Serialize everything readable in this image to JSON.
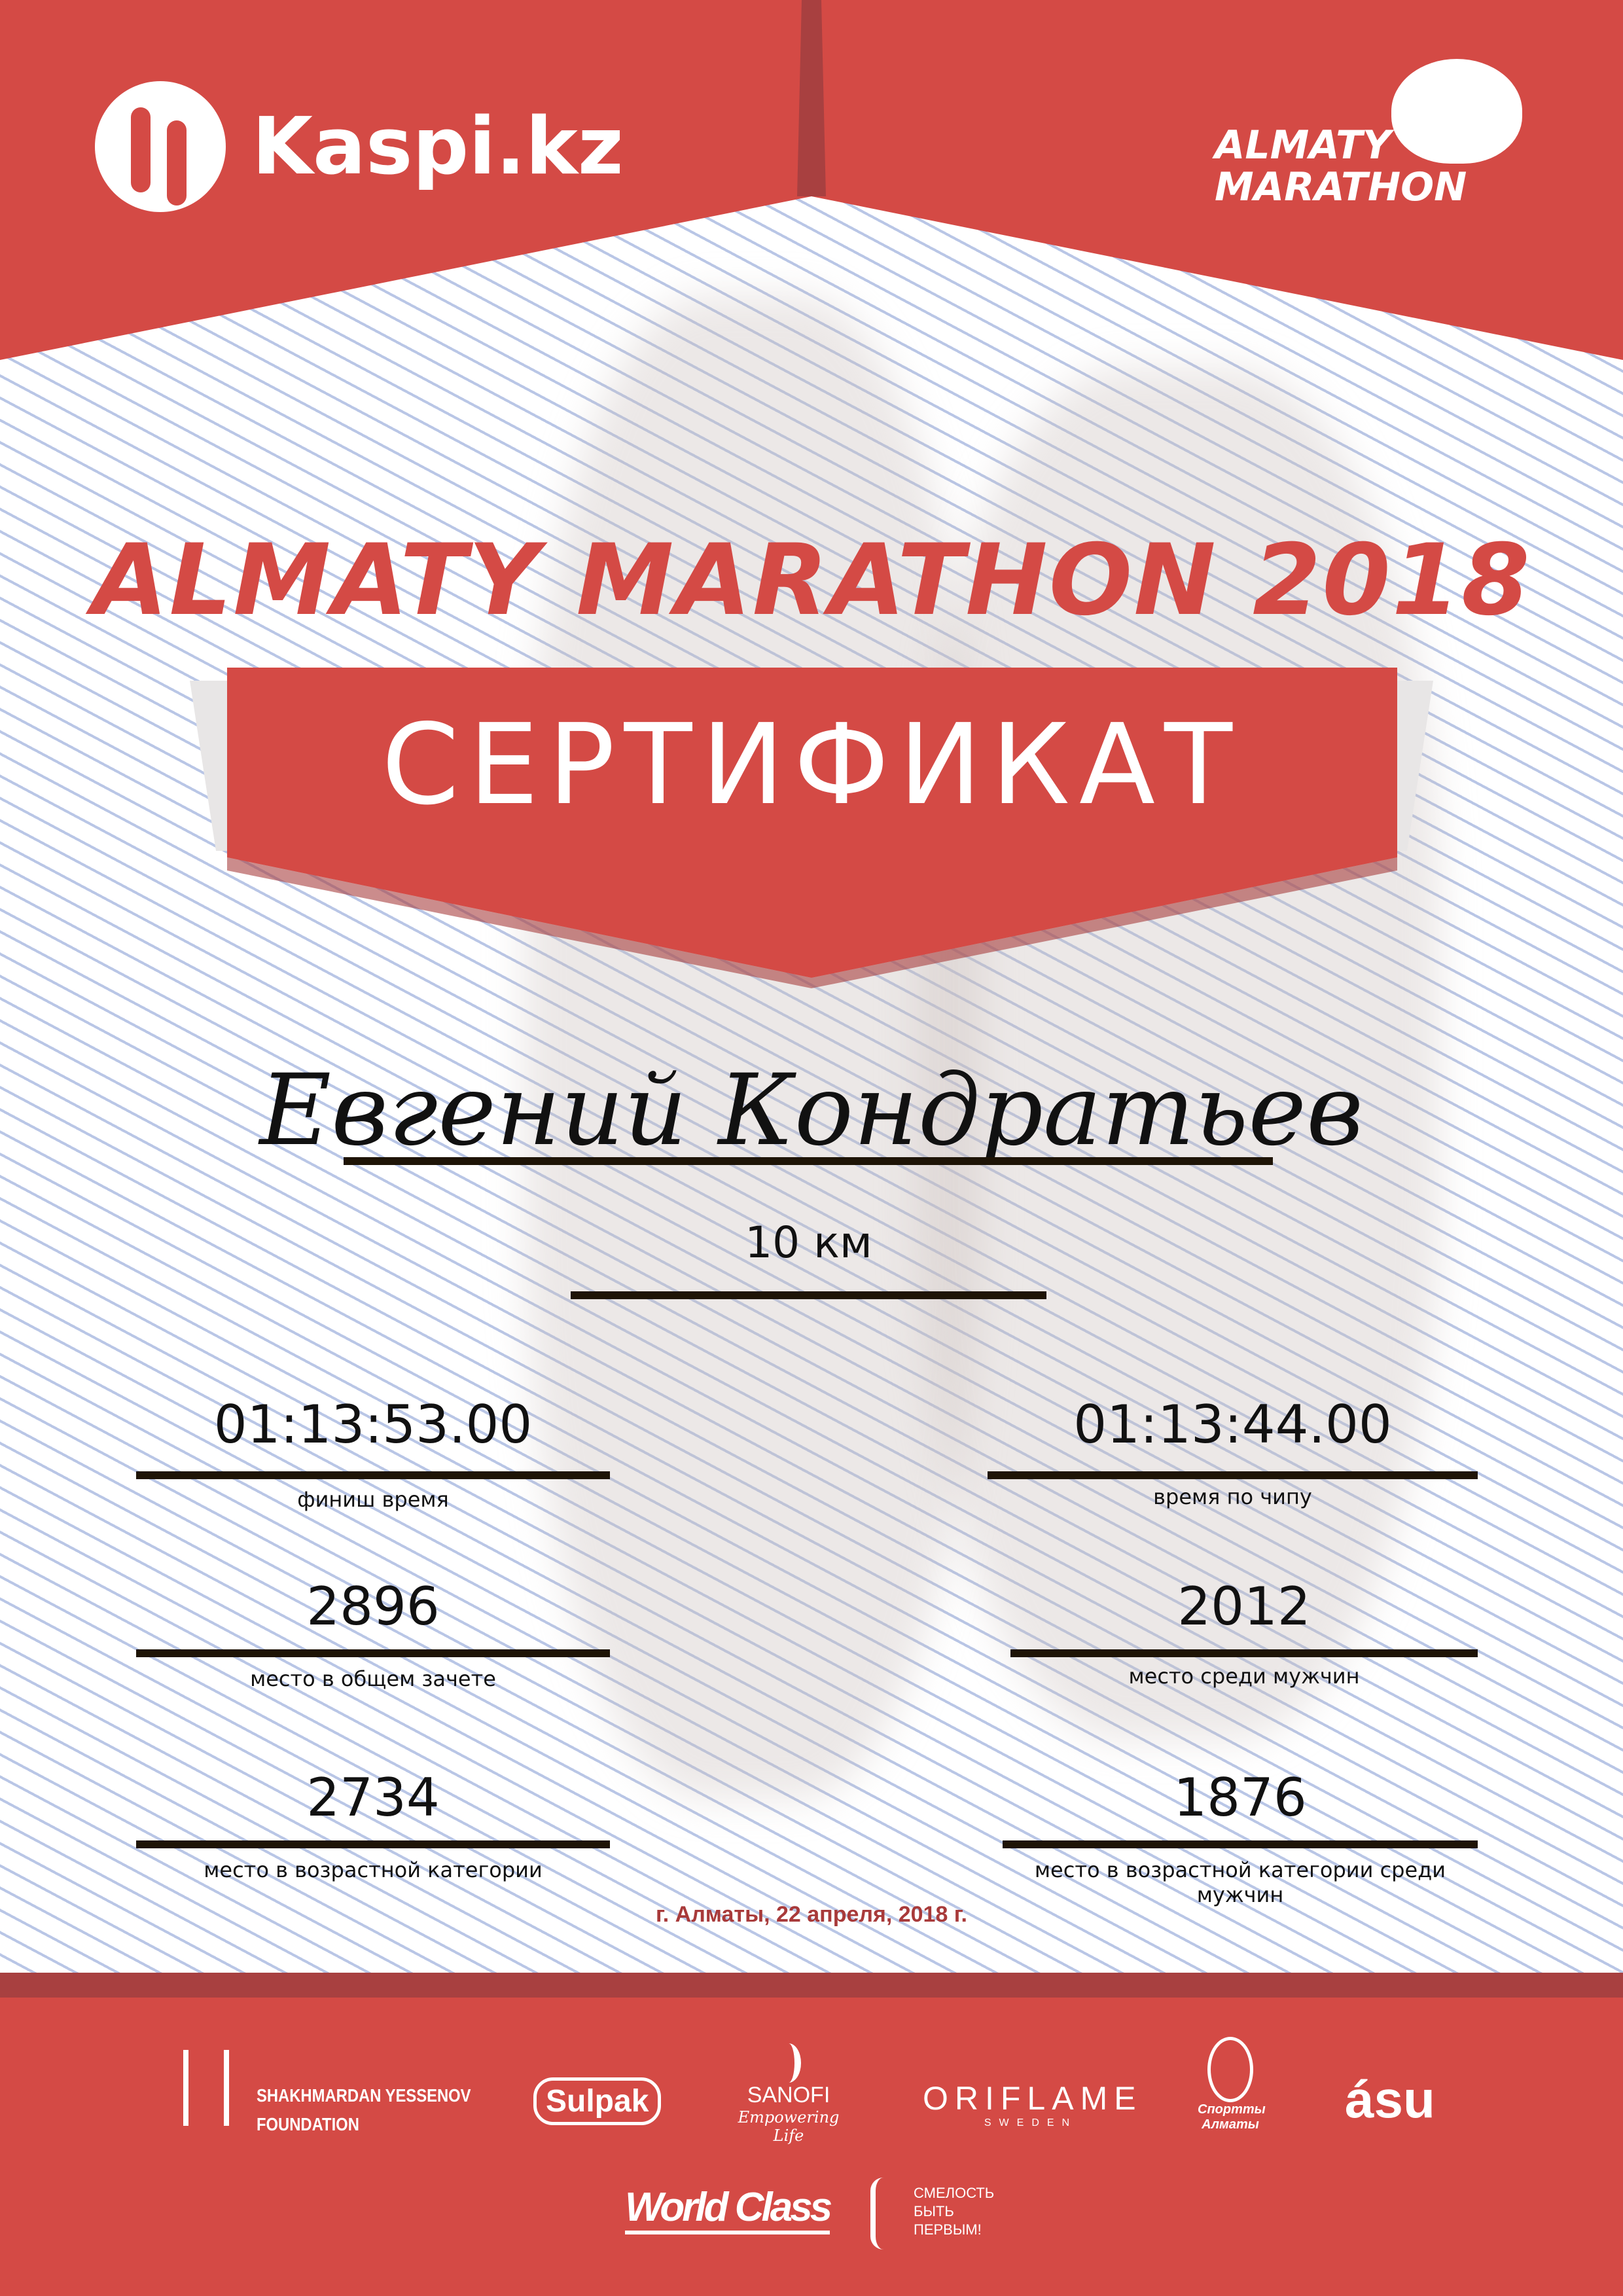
{
  "colors": {
    "brand_red": "#d44a45",
    "dark_red": "#a84040",
    "text": "#111111",
    "date": "#a83a3a"
  },
  "header": {
    "kaspi_logo": "Kaspi.kz",
    "almaty_logo_line1": "ALMATY",
    "almaty_logo_line2": "MARATHON"
  },
  "title": "ALMATY MARATHON 2018",
  "certificate": "СЕРТИФИКАТ",
  "participant": {
    "name": "Евгений Кондратьев",
    "distance": "10 км"
  },
  "results": [
    {
      "value": "01:13:53.00",
      "label": "финиш время"
    },
    {
      "value": "01:13:44.00",
      "label": "время по чипу"
    },
    {
      "value": "2896",
      "label": "место в общем зачете"
    },
    {
      "value": "2012",
      "label": "место среди мужчин"
    },
    {
      "value": "2734",
      "label": "место в возрастной категории"
    },
    {
      "value": "1876",
      "label": "место в возрастной категории среди мужчин"
    }
  ],
  "date": "г. Алматы, 22 апреля, 2018 г.",
  "sponsors": {
    "yessenov_1": "SHAKHMARDAN YESSENOV",
    "yessenov_2": "FOUNDATION",
    "sulpak": "Sulpak",
    "sanofi": "SANOFI",
    "sanofi_tag": "Empowering Life",
    "oriflame": "ORIFLAME",
    "oriflame_sub": "SWEDEN",
    "sportalmaty_1": "Спортты",
    "sportalmaty_2": "Алматы",
    "asu": "ásu",
    "worldclass": "World Class",
    "fund_1": "СМЕЛОСТЬ",
    "fund_2": "БЫТЬ",
    "fund_3": "ПЕРВЫМ!"
  }
}
